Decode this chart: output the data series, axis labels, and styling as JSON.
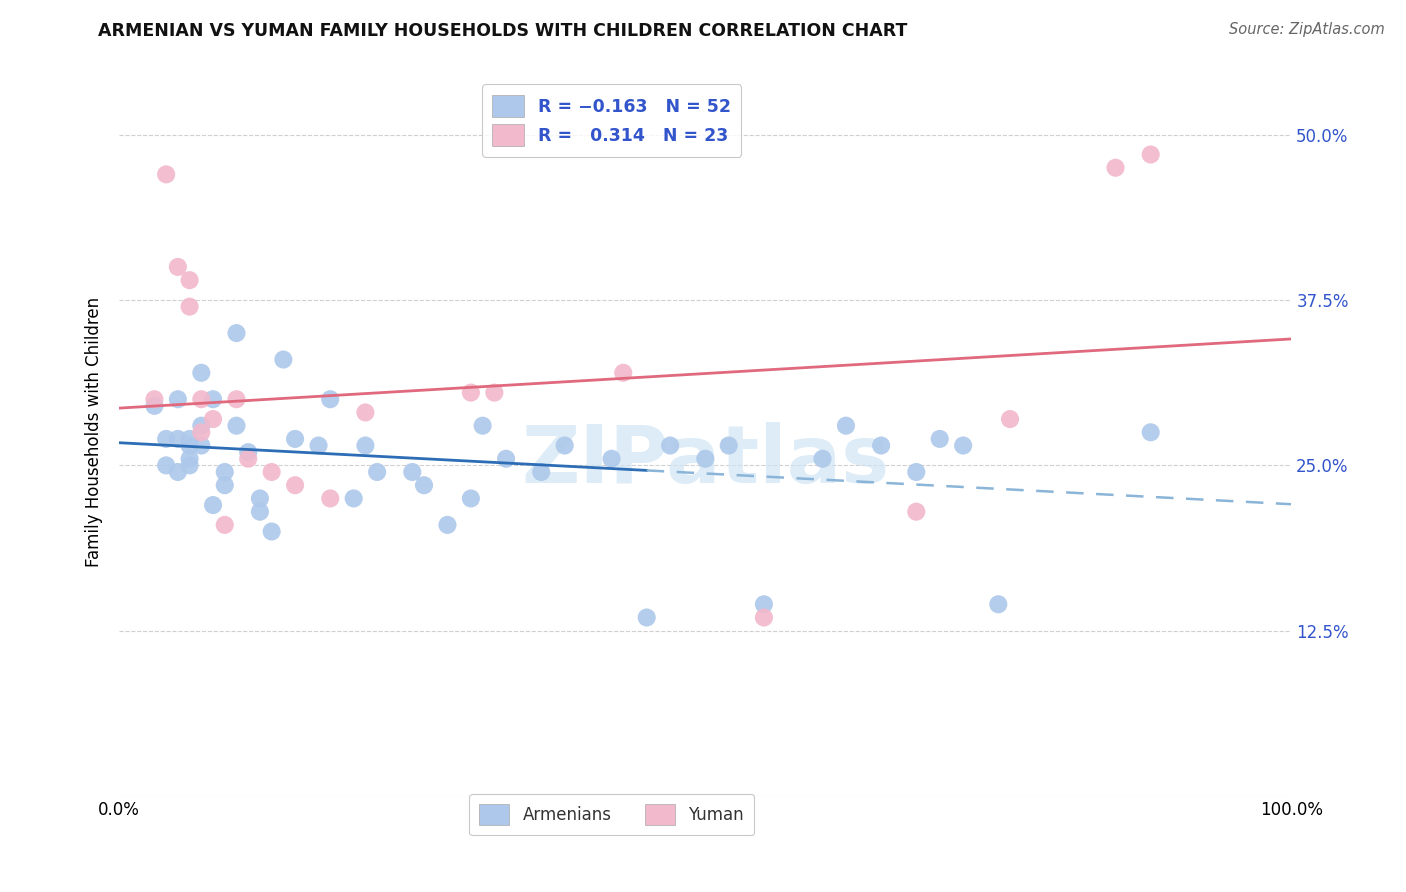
{
  "title": "ARMENIAN VS YUMAN FAMILY HOUSEHOLDS WITH CHILDREN CORRELATION CHART",
  "source": "Source: ZipAtlas.com",
  "ylabel": "Family Households with Children",
  "xlim": [
    0.0,
    1.0
  ],
  "ylim": [
    0.0,
    0.55
  ],
  "yticks": [
    0.0,
    0.125,
    0.25,
    0.375,
    0.5
  ],
  "ytick_labels": [
    "",
    "12.5%",
    "25.0%",
    "37.5%",
    "50.0%"
  ],
  "xticks": [
    0.0,
    1.0
  ],
  "xtick_labels": [
    "0.0%",
    "100.0%"
  ],
  "armenian_R": "-0.163",
  "armenian_N": "52",
  "yuman_R": "0.314",
  "yuman_N": "23",
  "armenian_color": "#adc8ea",
  "yuman_color": "#f2b8cb",
  "armenian_line_color": "#2d6db5",
  "armenian_line_color_dash": "#8ab4d8",
  "yuman_line_color": "#e0697e",
  "watermark_color": "#cfe4f4",
  "background_color": "#ffffff",
  "grid_color": "#d0d0d0",
  "legend_text_color": "#3355cc",
  "armenian_x": [
    0.03,
    0.04,
    0.04,
    0.05,
    0.05,
    0.05,
    0.06,
    0.06,
    0.06,
    0.06,
    0.07,
    0.07,
    0.07,
    0.08,
    0.08,
    0.09,
    0.09,
    0.1,
    0.1,
    0.11,
    0.12,
    0.12,
    0.13,
    0.14,
    0.15,
    0.17,
    0.18,
    0.2,
    0.21,
    0.22,
    0.25,
    0.26,
    0.28,
    0.3,
    0.31,
    0.33,
    0.36,
    0.38,
    0.42,
    0.45,
    0.47,
    0.5,
    0.52,
    0.55,
    0.6,
    0.62,
    0.65,
    0.68,
    0.7,
    0.72,
    0.75,
    0.88
  ],
  "armenian_y": [
    0.295,
    0.27,
    0.25,
    0.3,
    0.27,
    0.245,
    0.27,
    0.265,
    0.255,
    0.25,
    0.32,
    0.28,
    0.265,
    0.3,
    0.22,
    0.245,
    0.235,
    0.35,
    0.28,
    0.26,
    0.225,
    0.215,
    0.2,
    0.33,
    0.27,
    0.265,
    0.3,
    0.225,
    0.265,
    0.245,
    0.245,
    0.235,
    0.205,
    0.225,
    0.28,
    0.255,
    0.245,
    0.265,
    0.255,
    0.135,
    0.265,
    0.255,
    0.265,
    0.145,
    0.255,
    0.28,
    0.265,
    0.245,
    0.27,
    0.265,
    0.145,
    0.275
  ],
  "yuman_x": [
    0.03,
    0.04,
    0.05,
    0.06,
    0.06,
    0.07,
    0.07,
    0.08,
    0.09,
    0.1,
    0.11,
    0.13,
    0.15,
    0.18,
    0.21,
    0.3,
    0.32,
    0.43,
    0.55,
    0.68,
    0.76,
    0.85,
    0.88
  ],
  "yuman_y": [
    0.3,
    0.47,
    0.4,
    0.39,
    0.37,
    0.3,
    0.275,
    0.285,
    0.205,
    0.3,
    0.255,
    0.245,
    0.235,
    0.225,
    0.29,
    0.305,
    0.305,
    0.32,
    0.135,
    0.215,
    0.285,
    0.475,
    0.485
  ],
  "solid_line_end": 0.45,
  "dash_line_start": 0.45
}
